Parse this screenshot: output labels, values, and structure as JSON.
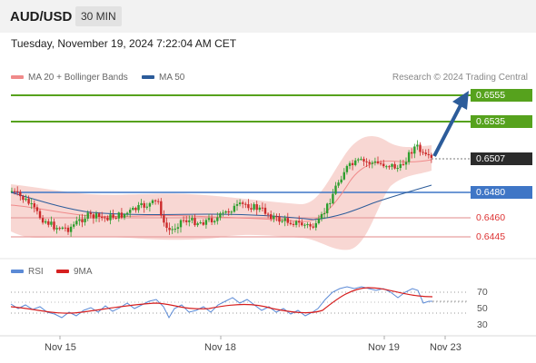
{
  "header": {
    "pair": "AUD/USD",
    "timeframe": "30 MIN"
  },
  "timestamp": "Tuesday, November 19, 2024 7:22:04 AM CET",
  "legend": {
    "ma20": "MA 20 + Bollinger Bands",
    "ma50": "MA 50",
    "ma20_color": "#f08a8a",
    "ma50_color": "#2c5c9a"
  },
  "credit": "Research © 2024 Trading Central",
  "levels": [
    {
      "value": "0.6555",
      "kind": "resistance",
      "color": "#56a21d"
    },
    {
      "value": "0.6535",
      "kind": "resistance",
      "color": "#56a21d"
    },
    {
      "value": "0.6507",
      "kind": "last-price",
      "color": "#2b2b2b"
    },
    {
      "value": "0.6480",
      "kind": "pivot",
      "color": "#3f76c6"
    },
    {
      "value": "0.6460",
      "kind": "support",
      "color": "#e05555"
    },
    {
      "value": "0.6445",
      "kind": "support",
      "color": "#e05555"
    }
  ],
  "rsi": {
    "label": "RSI",
    "ma_label": "9MA",
    "rsi_color": "#5b8ad6",
    "ma_color": "#d62020",
    "ticks": [
      "70",
      "50",
      "30"
    ]
  },
  "xaxis": [
    "Nov 15",
    "Nov 18",
    "Nov 19",
    "Nov 23"
  ],
  "colors": {
    "up": "#2e9e2e",
    "down": "#cc2a2a",
    "bb_fill": "#f6c9c4",
    "arrow": "#2c5c9a"
  }
}
